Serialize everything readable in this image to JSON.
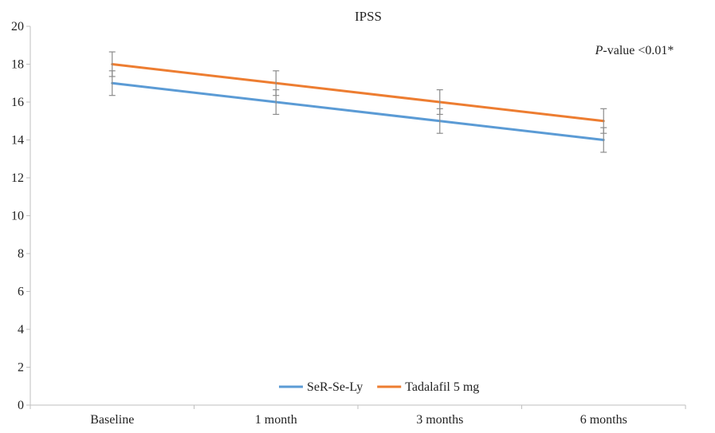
{
  "chart_data": {
    "type": "line",
    "title": "IPSS",
    "xlabel": "",
    "ylabel": "",
    "categories": [
      "Baseline",
      "1 month",
      "3 months",
      "6 months"
    ],
    "ylim": [
      0,
      20
    ],
    "yticks": [
      0,
      2,
      4,
      6,
      8,
      10,
      12,
      14,
      16,
      18,
      20
    ],
    "grid": false,
    "legend_position": "bottom-inside",
    "series": [
      {
        "name": "SeR-Se-Ly",
        "color": "#5B9BD5",
        "values": [
          17,
          16,
          15,
          14
        ],
        "error": [
          0.65,
          0.65,
          0.65,
          0.65
        ]
      },
      {
        "name": "Tadalafil 5 mg",
        "color": "#ED7D31",
        "values": [
          18,
          17,
          16,
          15
        ],
        "error": [
          0.65,
          0.65,
          0.65,
          0.65
        ]
      }
    ],
    "annotation": {
      "italic_part": "P",
      "rest": "-value <0.01*"
    }
  }
}
